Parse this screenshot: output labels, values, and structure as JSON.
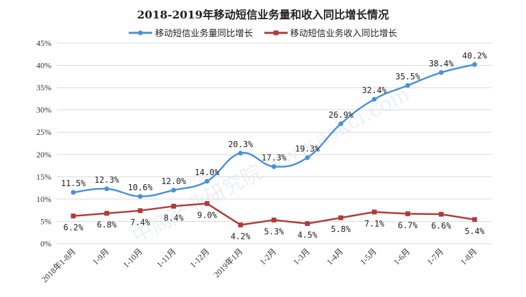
{
  "chart_data": {
    "type": "line",
    "title": "2018-2019年移动短信业务量和收入同比增长情况",
    "categories": [
      "2018年1-8月",
      "1-9月",
      "1-10月",
      "1-11月",
      "1-12月",
      "2019年1月",
      "1-2月",
      "1-3月",
      "1-4月",
      "1-5月",
      "1-6月",
      "1-7月",
      "1-8月"
    ],
    "series": [
      {
        "name": "移动短信业务量同比增长",
        "color": "#4a90d9",
        "smooth": true,
        "values": [
          11.5,
          12.3,
          10.6,
          12.0,
          14.0,
          20.3,
          17.3,
          19.3,
          26.9,
          32.4,
          35.5,
          38.4,
          40.2
        ]
      },
      {
        "name": "移动短信业务收入同比增长",
        "color": "#b03a3a",
        "smooth": false,
        "values": [
          6.2,
          6.8,
          7.4,
          8.4,
          9.0,
          4.2,
          5.3,
          4.5,
          5.8,
          7.1,
          6.7,
          6.6,
          5.4
        ]
      }
    ],
    "yticks": [
      "0%",
      "5%",
      "10%",
      "15%",
      "20%",
      "25%",
      "30%",
      "35%",
      "40%",
      "45%"
    ],
    "ylim": [
      0,
      45
    ],
    "unit": "%",
    "grid": true,
    "legend": "top"
  },
  "watermark": "中商产业研究院 www.askci.com"
}
